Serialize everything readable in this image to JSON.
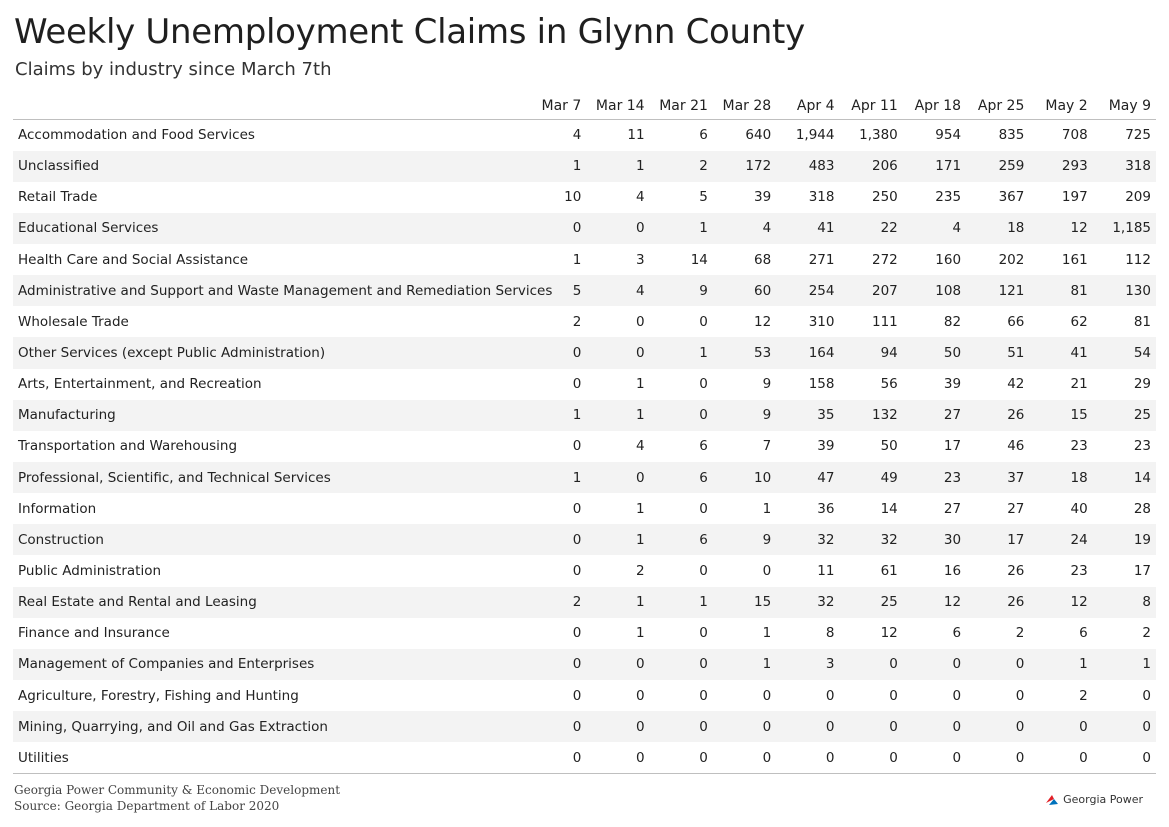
{
  "chart_data": {
    "type": "table",
    "title": "Weekly Unemployment Claims in Glynn County",
    "subtitle": "Claims by industry since March 7th",
    "columns": [
      "Mar 7",
      "Mar 14",
      "Mar 21",
      "Mar 28",
      "Apr 4",
      "Apr 11",
      "Apr 18",
      "Apr 25",
      "May 2",
      "May 9"
    ],
    "rows": [
      {
        "industry": "Accommodation and Food Services",
        "values": [
          "4",
          "11",
          "6",
          "640",
          "1,944",
          "1,380",
          "954",
          "835",
          "708",
          "725"
        ]
      },
      {
        "industry": "Unclassified",
        "values": [
          "1",
          "1",
          "2",
          "172",
          "483",
          "206",
          "171",
          "259",
          "293",
          "318"
        ]
      },
      {
        "industry": "Retail Trade",
        "values": [
          "10",
          "4",
          "5",
          "39",
          "318",
          "250",
          "235",
          "367",
          "197",
          "209"
        ]
      },
      {
        "industry": "Educational Services",
        "values": [
          "0",
          "0",
          "1",
          "4",
          "41",
          "22",
          "4",
          "18",
          "12",
          "1,185"
        ]
      },
      {
        "industry": "Health Care and Social Assistance",
        "values": [
          "1",
          "3",
          "14",
          "68",
          "271",
          "272",
          "160",
          "202",
          "161",
          "112"
        ]
      },
      {
        "industry": "Administrative and Support and Waste Management and Remediation Services",
        "values": [
          "5",
          "4",
          "9",
          "60",
          "254",
          "207",
          "108",
          "121",
          "81",
          "130"
        ]
      },
      {
        "industry": "Wholesale Trade",
        "values": [
          "2",
          "0",
          "0",
          "12",
          "310",
          "111",
          "82",
          "66",
          "62",
          "81"
        ]
      },
      {
        "industry": "Other Services (except Public Administration)",
        "values": [
          "0",
          "0",
          "1",
          "53",
          "164",
          "94",
          "50",
          "51",
          "41",
          "54"
        ]
      },
      {
        "industry": "Arts, Entertainment, and Recreation",
        "values": [
          "0",
          "1",
          "0",
          "9",
          "158",
          "56",
          "39",
          "42",
          "21",
          "29"
        ]
      },
      {
        "industry": "Manufacturing",
        "values": [
          "1",
          "1",
          "0",
          "9",
          "35",
          "132",
          "27",
          "26",
          "15",
          "25"
        ]
      },
      {
        "industry": "Transportation and Warehousing",
        "values": [
          "0",
          "4",
          "6",
          "7",
          "39",
          "50",
          "17",
          "46",
          "23",
          "23"
        ]
      },
      {
        "industry": "Professional, Scientific, and Technical Services",
        "values": [
          "1",
          "0",
          "6",
          "10",
          "47",
          "49",
          "23",
          "37",
          "18",
          "14"
        ]
      },
      {
        "industry": "Information",
        "values": [
          "0",
          "1",
          "0",
          "1",
          "36",
          "14",
          "27",
          "27",
          "40",
          "28"
        ]
      },
      {
        "industry": "Construction",
        "values": [
          "0",
          "1",
          "6",
          "9",
          "32",
          "32",
          "30",
          "17",
          "24",
          "19"
        ]
      },
      {
        "industry": "Public Administration",
        "values": [
          "0",
          "2",
          "0",
          "0",
          "11",
          "61",
          "16",
          "26",
          "23",
          "17"
        ]
      },
      {
        "industry": "Real Estate and Rental and Leasing",
        "values": [
          "2",
          "1",
          "1",
          "15",
          "32",
          "25",
          "12",
          "26",
          "12",
          "8"
        ]
      },
      {
        "industry": "Finance and Insurance",
        "values": [
          "0",
          "1",
          "0",
          "1",
          "8",
          "12",
          "6",
          "2",
          "6",
          "2"
        ]
      },
      {
        "industry": "Management of Companies and Enterprises",
        "values": [
          "0",
          "0",
          "0",
          "1",
          "3",
          "0",
          "0",
          "0",
          "1",
          "1"
        ]
      },
      {
        "industry": "Agriculture, Forestry, Fishing and Hunting",
        "values": [
          "0",
          "0",
          "0",
          "0",
          "0",
          "0",
          "0",
          "0",
          "2",
          "0"
        ]
      },
      {
        "industry": "Mining, Quarrying, and Oil and Gas Extraction",
        "values": [
          "0",
          "0",
          "0",
          "0",
          "0",
          "0",
          "0",
          "0",
          "0",
          "0"
        ]
      },
      {
        "industry": "Utilities",
        "values": [
          "0",
          "0",
          "0",
          "0",
          "0",
          "0",
          "0",
          "0",
          "0",
          "0"
        ]
      }
    ]
  },
  "footer": {
    "credit": "Georgia Power Community & Economic Development",
    "source": "Source: Georgia Department of Labor 2020",
    "logo_text": "Georgia Power",
    "logo_icon": "georgia-power-swoosh",
    "logo_colors": {
      "red": "#e21f26",
      "blue": "#0072bc"
    }
  }
}
